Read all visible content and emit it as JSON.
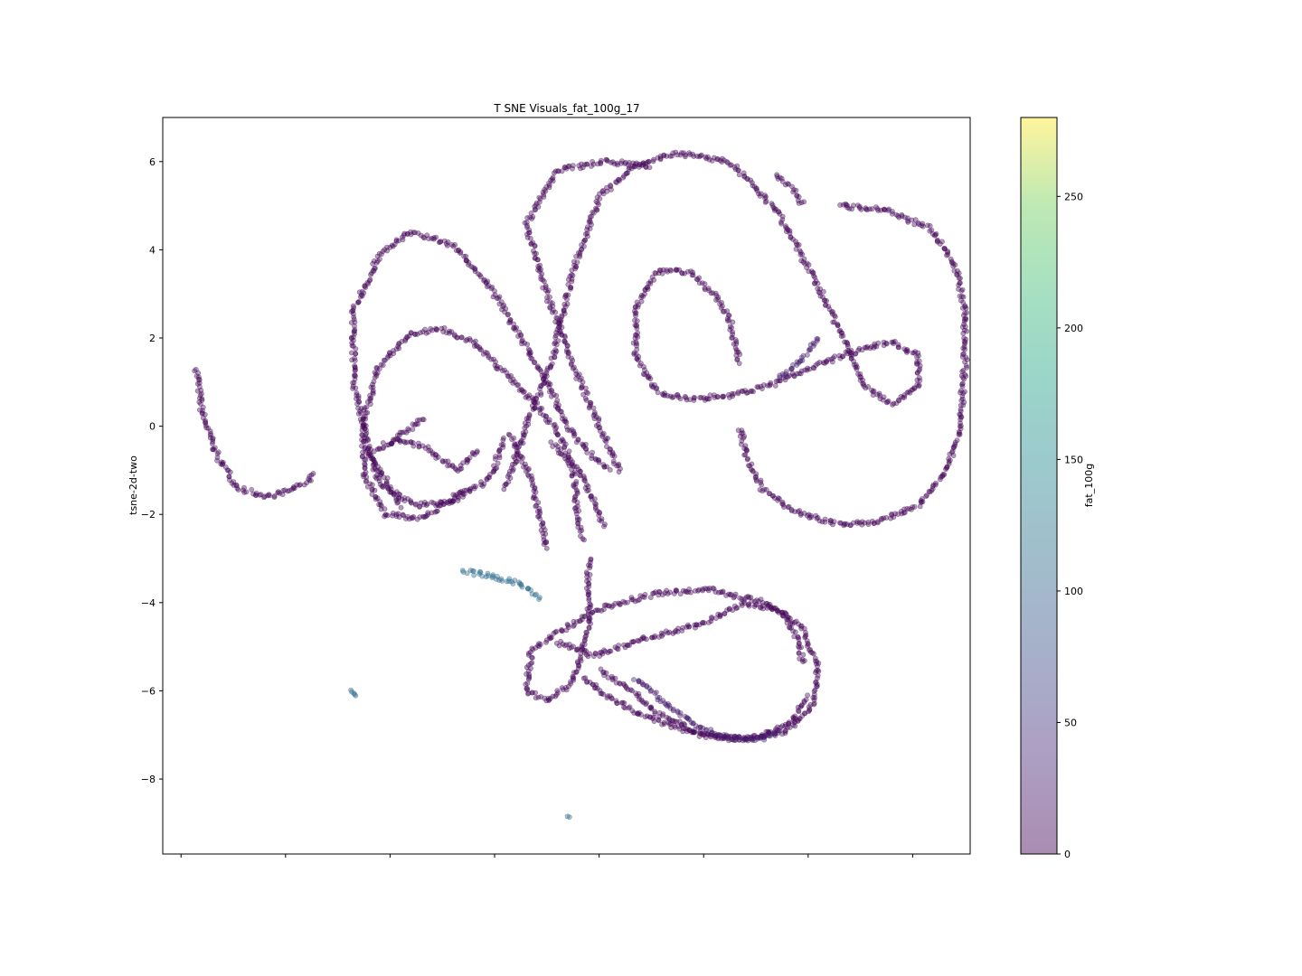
{
  "chart_data": {
    "type": "scatter",
    "title": "T SNE Visuals_fat_100g_17",
    "xlabel": "",
    "ylabel": "tsne-2d-two",
    "ylim": [
      -9.7,
      7.0
    ],
    "yticks": [
      6,
      4,
      2,
      0,
      -2,
      -4,
      -6,
      -8
    ],
    "xlim": [
      -7.85,
      7.6
    ],
    "xticks": [
      -7.5,
      -5.5,
      -3.5,
      -1.5,
      0.5,
      2.5,
      4.5,
      6.5
    ],
    "x_ticklabels_shown": false,
    "grid": false,
    "colormap": "viridis",
    "marker_alpha": 0.4,
    "colorbar": {
      "label": "fat_100g",
      "range": [
        0,
        280
      ],
      "ticks": [
        0,
        50,
        100,
        150,
        200,
        250
      ]
    },
    "series": [
      {
        "values_desc": "curve",
        "color_value": 5,
        "curves": [
          {
            "id": "left-tail",
            "pts": [
              [
                -7.2,
                1.3
              ],
              [
                -7.1,
                0.3
              ],
              [
                -6.8,
                -0.7
              ],
              [
                -6.4,
                -1.4
              ],
              [
                -5.9,
                -1.6
              ],
              [
                -5.4,
                -1.45
              ],
              [
                -4.9,
                -1.1
              ]
            ]
          },
          {
            "id": "left-upper-loop",
            "pts": [
              [
                -3.3,
                -1.8
              ],
              [
                -3.9,
                -0.6
              ],
              [
                -4.2,
                1.0
              ],
              [
                -4.2,
                2.6
              ],
              [
                -3.7,
                3.9
              ],
              [
                -3.1,
                4.4
              ],
              [
                -2.3,
                4.1
              ],
              [
                -1.6,
                3.2
              ],
              [
                -1.0,
                2.0
              ],
              [
                -0.5,
                1.0
              ],
              [
                -0.1,
                0.0
              ],
              [
                0.3,
                -0.6
              ],
              [
                0.7,
                -1.0
              ]
            ]
          },
          {
            "id": "left-inner-loop",
            "pts": [
              [
                -2.0,
                -1.4
              ],
              [
                -2.9,
                -2.1
              ],
              [
                -3.6,
                -2.0
              ],
              [
                -4.0,
                -1.1
              ],
              [
                -4.0,
                0.2
              ],
              [
                -3.7,
                1.4
              ],
              [
                -3.1,
                2.1
              ],
              [
                -2.5,
                2.2
              ],
              [
                -1.9,
                1.9
              ],
              [
                -1.3,
                1.2
              ],
              [
                -0.7,
                0.5
              ],
              [
                -0.2,
                -0.3
              ],
              [
                0.0,
                -1.0
              ],
              [
                0.1,
                -2.1
              ],
              [
                0.2,
                -2.6
              ]
            ]
          },
          {
            "id": "left-mid-band",
            "pts": [
              [
                -1.3,
                -0.3
              ],
              [
                -1.6,
                -1.2
              ],
              [
                -2.3,
                -1.7
              ],
              [
                -3.0,
                -1.8
              ],
              [
                -3.7,
                -1.3
              ],
              [
                -3.9,
                -0.6
              ],
              [
                -3.4,
                -0.3
              ],
              [
                -2.8,
                -0.5
              ],
              [
                -2.2,
                -1.0
              ],
              [
                -1.8,
                -0.5
              ]
            ]
          },
          {
            "id": "left-stub",
            "pts": [
              [
                -3.5,
                -0.4
              ],
              [
                -3.2,
                -0.1
              ],
              [
                -2.8,
                0.2
              ]
            ]
          },
          {
            "id": "big-arc",
            "pts": [
              [
                -1.3,
                -1.4
              ],
              [
                -0.9,
                0.0
              ],
              [
                -0.4,
                1.5
              ],
              [
                0.0,
                3.5
              ],
              [
                0.5,
                5.2
              ],
              [
                1.2,
                5.9
              ],
              [
                2.0,
                6.2
              ],
              [
                3.0,
                6.0
              ],
              [
                3.9,
                4.9
              ],
              [
                4.5,
                3.6
              ],
              [
                5.1,
                2.2
              ],
              [
                5.6,
                0.9
              ],
              [
                6.1,
                0.5
              ],
              [
                6.6,
                0.9
              ],
              [
                6.6,
                1.6
              ],
              [
                6.1,
                1.9
              ],
              [
                5.4,
                1.7
              ],
              [
                4.5,
                1.3
              ],
              [
                3.7,
                0.9
              ],
              [
                3.0,
                0.7
              ],
              [
                2.2,
                0.6
              ],
              [
                1.6,
                0.8
              ],
              [
                1.2,
                1.6
              ],
              [
                1.2,
                2.7
              ],
              [
                1.6,
                3.5
              ],
              [
                2.2,
                3.5
              ],
              [
                2.7,
                3.0
              ],
              [
                3.0,
                2.4
              ],
              [
                3.2,
                1.4
              ]
            ]
          },
          {
            "id": "big-arc-return",
            "pts": [
              [
                0.9,
                -1.0
              ],
              [
                0.5,
                0.0
              ],
              [
                0.0,
                1.4
              ],
              [
                -0.5,
                3.0
              ],
              [
                -0.9,
                4.6
              ],
              [
                -0.3,
                5.8
              ],
              [
                0.6,
                6.0
              ],
              [
                1.5,
                5.9
              ]
            ]
          },
          {
            "id": "top-short",
            "pts": [
              [
                3.9,
                5.7
              ],
              [
                4.2,
                5.4
              ],
              [
                4.4,
                5.0
              ]
            ]
          },
          {
            "id": "right-big-loop",
            "pts": [
              [
                5.1,
                5.0
              ],
              [
                6.0,
                4.9
              ],
              [
                6.8,
                4.5
              ],
              [
                7.3,
                3.7
              ],
              [
                7.5,
                2.6
              ],
              [
                7.5,
                1.4
              ],
              [
                7.4,
                0.0
              ],
              [
                7.3,
                -0.5
              ],
              [
                7.1,
                -1.1
              ],
              [
                6.6,
                -1.8
              ],
              [
                5.8,
                -2.2
              ],
              [
                5.0,
                -2.2
              ],
              [
                4.2,
                -1.9
              ],
              [
                3.6,
                -1.4
              ],
              [
                3.3,
                -0.6
              ],
              [
                3.2,
                0.0
              ]
            ]
          },
          {
            "id": "lower-loop",
            "pts": [
              [
                0.3,
                -3.0
              ],
              [
                0.3,
                -4.6
              ],
              [
                0.0,
                -5.8
              ],
              [
                -0.5,
                -6.2
              ],
              [
                -0.9,
                -6.0
              ],
              [
                -0.8,
                -5.1
              ],
              [
                -0.2,
                -4.6
              ],
              [
                0.6,
                -4.1
              ],
              [
                1.6,
                -3.8
              ],
              [
                2.6,
                -3.7
              ],
              [
                3.7,
                -4.0
              ],
              [
                4.4,
                -4.6
              ],
              [
                4.7,
                -5.5
              ],
              [
                4.6,
                -6.3
              ],
              [
                4.1,
                -6.9
              ],
              [
                3.3,
                -7.1
              ],
              [
                2.5,
                -7.0
              ],
              [
                1.6,
                -6.5
              ],
              [
                1.1,
                -6.0
              ],
              [
                0.5,
                -5.5
              ]
            ]
          },
          {
            "id": "lower-inner",
            "pts": [
              [
                -0.3,
                -4.9
              ],
              [
                0.4,
                -5.2
              ],
              [
                1.4,
                -4.8
              ],
              [
                2.4,
                -4.5
              ],
              [
                3.3,
                -4.0
              ],
              [
                4.0,
                -4.2
              ],
              [
                4.3,
                -4.8
              ],
              [
                4.4,
                -5.4
              ]
            ]
          },
          {
            "id": "lower-return",
            "pts": [
              [
                0.2,
                -5.7
              ],
              [
                0.6,
                -6.1
              ],
              [
                1.4,
                -6.6
              ],
              [
                2.4,
                -7.0
              ],
              [
                3.4,
                -7.1
              ],
              [
                4.2,
                -6.7
              ],
              [
                4.5,
                -6.1
              ]
            ]
          },
          {
            "id": "left-strands",
            "pts": [
              [
                -1.2,
                -0.2
              ],
              [
                -0.8,
                -1.2
              ],
              [
                -0.6,
                -2.2
              ],
              [
                -0.5,
                -2.8
              ]
            ]
          },
          {
            "id": "left-strands-2",
            "pts": [
              [
                -0.4,
                -0.4
              ],
              [
                0.1,
                -1.0
              ],
              [
                0.4,
                -1.7
              ],
              [
                0.6,
                -2.3
              ]
            ]
          }
        ]
      },
      {
        "values_desc": "curve",
        "color_value": 25,
        "curves": [
          {
            "id": "lower-light-arc",
            "pts": [
              [
                1.2,
                -5.7
              ],
              [
                1.8,
                -6.3
              ],
              [
                2.4,
                -6.8
              ],
              [
                3.0,
                -7.1
              ],
              [
                3.6,
                -7.1
              ],
              [
                4.0,
                -6.9
              ]
            ]
          },
          {
            "id": "right-loop-light",
            "pts": [
              [
                4.7,
                2.0
              ],
              [
                4.3,
                1.4
              ],
              [
                3.9,
                1.1
              ]
            ]
          }
        ]
      },
      {
        "values_desc": "curve",
        "color_value": 110,
        "curves": [
          {
            "id": "teal-arc",
            "pts": [
              [
                -2.1,
                -3.3
              ],
              [
                -1.5,
                -3.4
              ],
              [
                -1.0,
                -3.6
              ],
              [
                -0.6,
                -3.9
              ]
            ]
          },
          {
            "id": "teal-dot-1",
            "pts": [
              [
                -4.25,
                -6.0
              ],
              [
                -4.2,
                -6.05
              ],
              [
                -4.15,
                -6.15
              ]
            ]
          },
          {
            "id": "teal-dot-2",
            "pts": [
              [
                -0.1,
                -8.85
              ],
              [
                -0.05,
                -8.9
              ]
            ]
          }
        ]
      }
    ]
  }
}
